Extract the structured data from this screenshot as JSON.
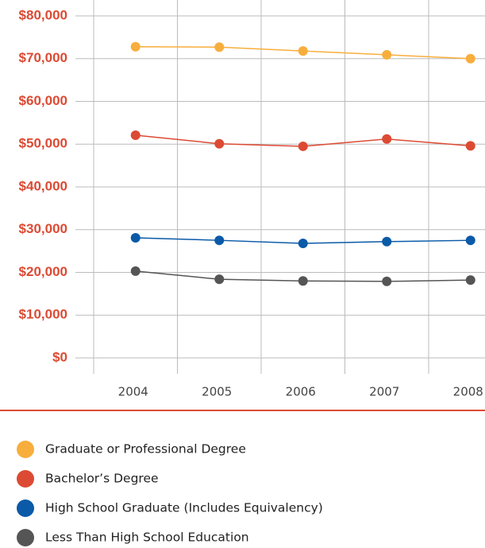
{
  "chart_data": {
    "type": "line",
    "categories": [
      "2004",
      "2005",
      "2006",
      "2007",
      "2008"
    ],
    "series": [
      {
        "name": "Graduate or Professional Degree",
        "color": "#f7ae3d",
        "values": [
          72800,
          72700,
          71800,
          70900,
          70000
        ]
      },
      {
        "name": "Bachelor’s Degree",
        "color": "#dc4a33",
        "values": [
          52100,
          50100,
          49500,
          51200,
          49600
        ]
      },
      {
        "name": "High School Graduate (Includes Equivalency)",
        "color": "#0a5aa8",
        "values": [
          28100,
          27500,
          26800,
          27200,
          27500
        ]
      },
      {
        "name": "Less Than High School Education",
        "color": "#555555",
        "values": [
          20300,
          18400,
          18000,
          17900,
          18200
        ]
      }
    ],
    "ylim": [
      0,
      80000
    ],
    "yticks": [
      {
        "value": 0,
        "label": "$0"
      },
      {
        "value": 10000,
        "label": "$10,000"
      },
      {
        "value": 20000,
        "label": "$20,000"
      },
      {
        "value": 30000,
        "label": "$30,000"
      },
      {
        "value": 40000,
        "label": "$40,000"
      },
      {
        "value": 50000,
        "label": "$50,000"
      },
      {
        "value": 60000,
        "label": "$60,000"
      },
      {
        "value": 70000,
        "label": "$70,000"
      },
      {
        "value": 80000,
        "label": "$80,000"
      }
    ],
    "grid": true
  }
}
